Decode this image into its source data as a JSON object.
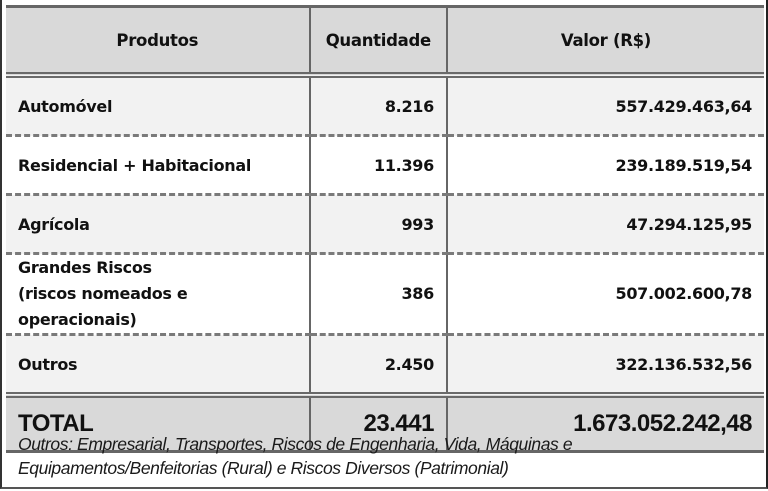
{
  "table": {
    "headers": {
      "product": "Produtos",
      "quantity": "Quantidade",
      "value": "Valor (R$)"
    },
    "rows": [
      {
        "product": "Automóvel",
        "product_line2": "",
        "quantity": "8.216",
        "value": "557.429.463,64"
      },
      {
        "product": "Residencial + Habitacional",
        "product_line2": "",
        "quantity": "11.396",
        "value": "239.189.519,54"
      },
      {
        "product": "Agrícola",
        "product_line2": "",
        "quantity": "993",
        "value": "47.294.125,95"
      },
      {
        "product": "Grandes Riscos",
        "product_line2": "(riscos nomeados e operacionais)",
        "quantity": "386",
        "value": "507.002.600,78"
      },
      {
        "product": "Outros",
        "product_line2": "",
        "quantity": "2.450",
        "value": "322.136.532,56"
      }
    ],
    "total": {
      "label": "TOTAL",
      "quantity": "23.441",
      "value": "1.673.052.242,48"
    }
  },
  "footnote": {
    "line1": "Outros: Empresarial, Transportes, Riscos de Engenharia, Vida, Máquinas e",
    "line2": "Equipamentos/Benfeitorias (Rural) e Riscos Diversos (Patrimonial)"
  },
  "colors": {
    "header_bg": "#d9d9d9",
    "shaded_row_bg": "#f2f2f2",
    "plain_row_bg": "#ffffff",
    "total_bg": "#d9d9d9",
    "border": "#666666"
  }
}
